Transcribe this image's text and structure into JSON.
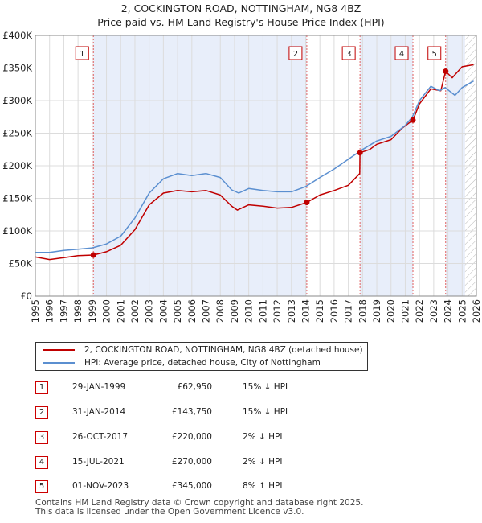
{
  "chart_data": {
    "type": "line",
    "title": "2, COCKINGTON ROAD, NOTTINGHAM, NG8 4BZ",
    "subtitle": "Price paid vs. HM Land Registry's House Price Index (HPI)",
    "xlabel": "",
    "ylabel": "",
    "xlim": [
      1995.0,
      2026.0
    ],
    "ylim": [
      0,
      400000
    ],
    "yticks": [
      {
        "value": 0,
        "label": "£0"
      },
      {
        "value": 50000,
        "label": "£50K"
      },
      {
        "value": 100000,
        "label": "£100K"
      },
      {
        "value": 150000,
        "label": "£150K"
      },
      {
        "value": 200000,
        "label": "£200K"
      },
      {
        "value": 250000,
        "label": "£250K"
      },
      {
        "value": 300000,
        "label": "£300K"
      },
      {
        "value": 350000,
        "label": "£350K"
      },
      {
        "value": 400000,
        "label": "£400K"
      }
    ],
    "xticks": [
      "1995",
      "1996",
      "1997",
      "1998",
      "1999",
      "2000",
      "2001",
      "2002",
      "2003",
      "2004",
      "2005",
      "2006",
      "2007",
      "2008",
      "2009",
      "2010",
      "2011",
      "2012",
      "2013",
      "2014",
      "2015",
      "2016",
      "2017",
      "2018",
      "2019",
      "2020",
      "2021",
      "2022",
      "2023",
      "2024",
      "2025",
      "2026"
    ],
    "grid": true,
    "colors": {
      "property": "#c00000",
      "hpi": "#5b8fd0",
      "shade": "#e8eefa",
      "marker_line": "#e06060",
      "hatch": "#b0b0b0"
    },
    "hatch_from": 2025.2,
    "series": [
      {
        "name": "2, COCKINGTON ROAD, NOTTINGHAM, NG8 4BZ (detached house)",
        "key": "property",
        "points": [
          [
            1995.0,
            60000
          ],
          [
            1996.0,
            56000
          ],
          [
            1997.0,
            59000
          ],
          [
            1998.0,
            62000
          ],
          [
            1999.08,
            62950
          ],
          [
            2000.0,
            68000
          ],
          [
            2001.0,
            78000
          ],
          [
            2002.0,
            102000
          ],
          [
            2003.0,
            140000
          ],
          [
            2004.0,
            158000
          ],
          [
            2005.0,
            162000
          ],
          [
            2006.0,
            160000
          ],
          [
            2007.0,
            162000
          ],
          [
            2008.0,
            155000
          ],
          [
            2008.8,
            138000
          ],
          [
            2009.2,
            132000
          ],
          [
            2010.0,
            140000
          ],
          [
            2011.0,
            138000
          ],
          [
            2012.0,
            135000
          ],
          [
            2013.0,
            136000
          ],
          [
            2014.08,
            143750
          ],
          [
            2015.0,
            155000
          ],
          [
            2016.0,
            162000
          ],
          [
            2017.0,
            170000
          ],
          [
            2017.8,
            188000
          ],
          [
            2017.82,
            220000
          ],
          [
            2018.5,
            225000
          ],
          [
            2019.0,
            233000
          ],
          [
            2020.0,
            240000
          ],
          [
            2020.8,
            258000
          ],
          [
            2021.54,
            270000
          ],
          [
            2022.0,
            295000
          ],
          [
            2022.8,
            318000
          ],
          [
            2023.5,
            315000
          ],
          [
            2023.84,
            345000
          ],
          [
            2024.3,
            335000
          ],
          [
            2025.0,
            352000
          ],
          [
            2025.8,
            355000
          ]
        ]
      },
      {
        "name": "HPI: Average price, detached house, City of Nottingham",
        "key": "hpi",
        "points": [
          [
            1995.0,
            67000
          ],
          [
            1996.0,
            67000
          ],
          [
            1997.0,
            70000
          ],
          [
            1998.0,
            72000
          ],
          [
            1999.0,
            74000
          ],
          [
            2000.0,
            80000
          ],
          [
            2001.0,
            92000
          ],
          [
            2002.0,
            120000
          ],
          [
            2003.0,
            158000
          ],
          [
            2004.0,
            180000
          ],
          [
            2005.0,
            188000
          ],
          [
            2006.0,
            185000
          ],
          [
            2007.0,
            188000
          ],
          [
            2008.0,
            182000
          ],
          [
            2008.8,
            163000
          ],
          [
            2009.3,
            158000
          ],
          [
            2010.0,
            165000
          ],
          [
            2011.0,
            162000
          ],
          [
            2012.0,
            160000
          ],
          [
            2013.0,
            160000
          ],
          [
            2014.0,
            168000
          ],
          [
            2015.0,
            182000
          ],
          [
            2016.0,
            195000
          ],
          [
            2017.0,
            210000
          ],
          [
            2018.0,
            225000
          ],
          [
            2019.0,
            238000
          ],
          [
            2020.0,
            245000
          ],
          [
            2021.0,
            262000
          ],
          [
            2021.5,
            275000
          ],
          [
            2022.0,
            300000
          ],
          [
            2022.8,
            322000
          ],
          [
            2023.4,
            315000
          ],
          [
            2023.8,
            320000
          ],
          [
            2024.5,
            308000
          ],
          [
            2025.0,
            320000
          ],
          [
            2025.8,
            330000
          ]
        ]
      }
    ],
    "transactions": [
      {
        "num": "1",
        "x": 1999.08,
        "y": 62950
      },
      {
        "num": "2",
        "x": 2014.08,
        "y": 143750
      },
      {
        "num": "3",
        "x": 2017.82,
        "y": 220000
      },
      {
        "num": "4",
        "x": 2021.54,
        "y": 270000
      },
      {
        "num": "5",
        "x": 2023.84,
        "y": 345000
      }
    ]
  },
  "legend": {
    "property_label": "2, COCKINGTON ROAD, NOTTINGHAM, NG8 4BZ (detached house)",
    "hpi_label": "HPI: Average price, detached house, City of Nottingham"
  },
  "table": [
    {
      "num": "1",
      "date": "29-JAN-1999",
      "price": "£62,950",
      "hpi": "15% ↓ HPI"
    },
    {
      "num": "2",
      "date": "31-JAN-2014",
      "price": "£143,750",
      "hpi": "15% ↓ HPI"
    },
    {
      "num": "3",
      "date": "26-OCT-2017",
      "price": "£220,000",
      "hpi": "2% ↓ HPI"
    },
    {
      "num": "4",
      "date": "15-JUL-2021",
      "price": "£270,000",
      "hpi": "2% ↓ HPI"
    },
    {
      "num": "5",
      "date": "01-NOV-2023",
      "price": "£345,000",
      "hpi": "8% ↑ HPI"
    }
  ],
  "footer": {
    "line1": "Contains HM Land Registry data © Crown copyright and database right 2025.",
    "line2": "This data is licensed under the Open Government Licence v3.0."
  }
}
